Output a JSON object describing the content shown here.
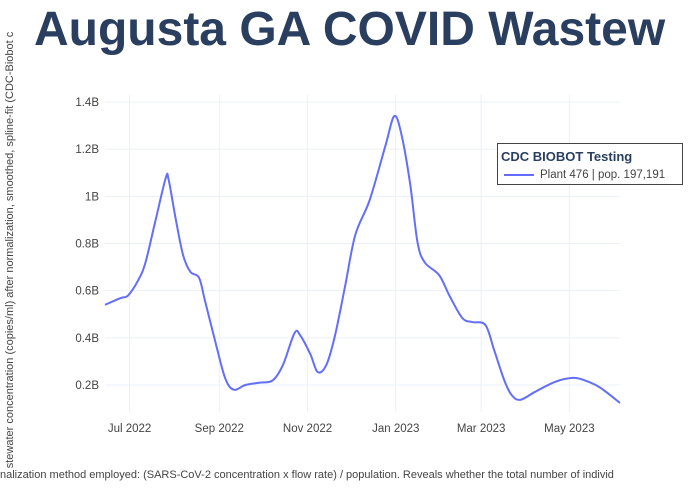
{
  "title": "Augusta GA COVID Wastew",
  "caption": "nalization method employed: (SARS-CoV-2 concentration x flow rate) / population. Reveals whether the total number of individ",
  "chart_data": {
    "type": "line",
    "title": "Augusta GA COVID Wastew",
    "ylabel": "stewater concentration (copies/ml) after normalization, smoothed, spline-fit (CDC-Biobot c",
    "xlabel": "",
    "ylim": [
      0.1,
      1.45
    ],
    "y_unit": "billions",
    "yticks": [
      0.2,
      0.4,
      0.6,
      0.8,
      1.0,
      1.2,
      1.4
    ],
    "ytick_labels": [
      "0.2B",
      "0.4B",
      "0.6B",
      "0.8B",
      "1B",
      "1.2B",
      "1.4B"
    ],
    "xlim": [
      "2022-06-14",
      "2023-06-05"
    ],
    "xticks": [
      "2022-07-01",
      "2022-09-01",
      "2022-11-01",
      "2023-01-01",
      "2023-03-01",
      "2023-05-01"
    ],
    "xtick_labels": [
      "Jul 2022",
      "Sep 2022",
      "Nov 2022",
      "Jan 2023",
      "Mar 2023",
      "May 2023"
    ],
    "grid": true,
    "legend": {
      "title": "CDC BIOBOT Testing",
      "placement": "top-right"
    },
    "series": [
      {
        "name": "Plant 476 | pop. 197,191",
        "color": "#636efa",
        "x": [
          "2022-06-14",
          "2022-06-25",
          "2022-06-30",
          "2022-07-07",
          "2022-07-12",
          "2022-07-19",
          "2022-07-26",
          "2022-07-28",
          "2022-08-02",
          "2022-08-07",
          "2022-08-12",
          "2022-08-18",
          "2022-08-22",
          "2022-08-29",
          "2022-09-05",
          "2022-09-11",
          "2022-09-19",
          "2022-09-29",
          "2022-10-08",
          "2022-10-15",
          "2022-10-23",
          "2022-10-27",
          "2022-11-03",
          "2022-11-08",
          "2022-11-14",
          "2022-11-20",
          "2022-11-27",
          "2022-12-04",
          "2022-12-14",
          "2022-12-25",
          "2022-12-31",
          "2023-01-05",
          "2023-01-11",
          "2023-01-16",
          "2023-01-21",
          "2023-01-31",
          "2023-02-07",
          "2023-02-16",
          "2023-02-23",
          "2023-03-04",
          "2023-03-10",
          "2023-03-17",
          "2023-03-22",
          "2023-03-28",
          "2023-04-07",
          "2023-04-21",
          "2023-05-03",
          "2023-05-11",
          "2023-05-22",
          "2023-06-05"
        ],
        "y": [
          0.54,
          0.569,
          0.58,
          0.645,
          0.72,
          0.9,
          1.078,
          1.07,
          0.9,
          0.75,
          0.68,
          0.655,
          0.56,
          0.39,
          0.23,
          0.18,
          0.2,
          0.21,
          0.22,
          0.285,
          0.42,
          0.41,
          0.33,
          0.255,
          0.285,
          0.41,
          0.62,
          0.836,
          0.985,
          1.218,
          1.34,
          1.26,
          1.05,
          0.806,
          0.72,
          0.666,
          0.58,
          0.484,
          0.467,
          0.454,
          0.348,
          0.22,
          0.158,
          0.137,
          0.17,
          0.213,
          0.23,
          0.221,
          0.19,
          0.124
        ]
      }
    ]
  }
}
